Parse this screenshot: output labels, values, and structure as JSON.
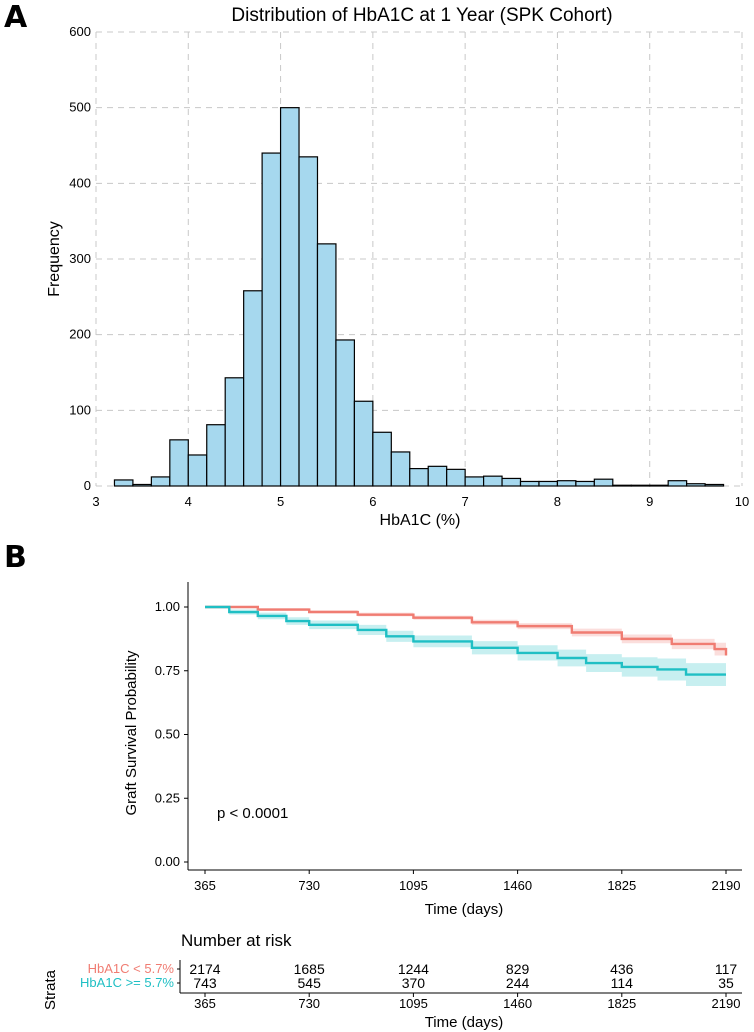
{
  "panels": {
    "a": "A",
    "b": "B"
  },
  "chart_data": [
    {
      "type": "bar",
      "title": "Distribution of HbA1C at 1 Year (SPK Cohort)",
      "xlabel": "HbA1C (%)",
      "ylabel": "Frequency",
      "xlim": [
        3,
        10
      ],
      "ylim": [
        0,
        600
      ],
      "xticks": [
        "3",
        "4",
        "5",
        "6",
        "7",
        "8",
        "9",
        "10"
      ],
      "yticks": [
        "0",
        "100",
        "200",
        "300",
        "400",
        "500",
        "600"
      ],
      "grid": true,
      "bar_color": "#a6d8ee",
      "bins": [
        {
          "x": 3.1,
          "count": 0
        },
        {
          "x": 3.3,
          "count": 8
        },
        {
          "x": 3.5,
          "count": 2
        },
        {
          "x": 3.7,
          "count": 12
        },
        {
          "x": 3.9,
          "count": 61
        },
        {
          "x": 4.1,
          "count": 41
        },
        {
          "x": 4.3,
          "count": 81
        },
        {
          "x": 4.5,
          "count": 143
        },
        {
          "x": 4.7,
          "count": 258
        },
        {
          "x": 4.9,
          "count": 440
        },
        {
          "x": 5.1,
          "count": 500
        },
        {
          "x": 5.3,
          "count": 435
        },
        {
          "x": 5.5,
          "count": 320
        },
        {
          "x": 5.7,
          "count": 193
        },
        {
          "x": 5.9,
          "count": 112
        },
        {
          "x": 6.1,
          "count": 71
        },
        {
          "x": 6.3,
          "count": 45
        },
        {
          "x": 6.5,
          "count": 23
        },
        {
          "x": 6.7,
          "count": 26
        },
        {
          "x": 6.9,
          "count": 22
        },
        {
          "x": 7.1,
          "count": 12
        },
        {
          "x": 7.3,
          "count": 13
        },
        {
          "x": 7.5,
          "count": 10
        },
        {
          "x": 7.7,
          "count": 6
        },
        {
          "x": 7.9,
          "count": 6
        },
        {
          "x": 8.1,
          "count": 7
        },
        {
          "x": 8.3,
          "count": 6
        },
        {
          "x": 8.5,
          "count": 9
        },
        {
          "x": 8.7,
          "count": 1
        },
        {
          "x": 8.9,
          "count": 1
        },
        {
          "x": 9.1,
          "count": 1
        },
        {
          "x": 9.3,
          "count": 7
        },
        {
          "x": 9.5,
          "count": 3
        },
        {
          "x": 9.7,
          "count": 2
        }
      ]
    },
    {
      "type": "line",
      "ylabel": "Graft Survival Probability",
      "xlabel": "Time (days)",
      "xlim": [
        365,
        2190
      ],
      "ylim": [
        0,
        1
      ],
      "xticks": [
        "365",
        "730",
        "1095",
        "1460",
        "1825",
        "2190"
      ],
      "yticks": [
        "0.00",
        "0.25",
        "0.50",
        "0.75",
        "1.00"
      ],
      "annotation": "p < 0.0001",
      "series": [
        {
          "name": "HbA1C < 5.7%",
          "color": "#f07c72",
          "x": [
            365,
            550,
            730,
            900,
            1095,
            1300,
            1460,
            1650,
            1825,
            2000,
            2150,
            2190
          ],
          "y": [
            1.0,
            0.99,
            0.98,
            0.97,
            0.958,
            0.94,
            0.925,
            0.9,
            0.875,
            0.855,
            0.835,
            0.81
          ],
          "ci_low": [
            1.0,
            0.985,
            0.975,
            0.963,
            0.95,
            0.93,
            0.913,
            0.885,
            0.858,
            0.835,
            0.81,
            0.785
          ],
          "ci_high": [
            1.0,
            0.995,
            0.988,
            0.978,
            0.966,
            0.95,
            0.937,
            0.915,
            0.892,
            0.875,
            0.86,
            0.84
          ]
        },
        {
          "name": "HbA1C >= 5.7%",
          "color": "#1fbfc4",
          "x": [
            365,
            450,
            550,
            650,
            730,
            900,
            1000,
            1095,
            1300,
            1460,
            1600,
            1700,
            1825,
            1950,
            2050,
            2190
          ],
          "y": [
            1.0,
            0.98,
            0.965,
            0.945,
            0.93,
            0.91,
            0.885,
            0.865,
            0.84,
            0.82,
            0.8,
            0.78,
            0.765,
            0.755,
            0.735,
            0.735
          ],
          "ci_low": [
            1.0,
            0.97,
            0.952,
            0.93,
            0.913,
            0.89,
            0.863,
            0.842,
            0.814,
            0.79,
            0.767,
            0.745,
            0.727,
            0.712,
            0.69,
            0.69
          ],
          "ci_high": [
            1.0,
            0.99,
            0.978,
            0.96,
            0.947,
            0.93,
            0.907,
            0.888,
            0.866,
            0.85,
            0.833,
            0.815,
            0.803,
            0.798,
            0.78,
            0.78
          ]
        }
      ]
    },
    {
      "type": "table",
      "title": "Number at risk",
      "ylabel": "Strata",
      "xlabel": "Time (days)",
      "columns": [
        "365",
        "730",
        "1095",
        "1460",
        "1825",
        "2190"
      ],
      "rows": [
        {
          "label": "HbA1C < 5.7%",
          "color": "#f07c72",
          "values": [
            "2174",
            "1685",
            "1244",
            "829",
            "436",
            "117"
          ]
        },
        {
          "label": "HbA1C >= 5.7%",
          "color": "#1fbfc4",
          "values": [
            "743",
            "545",
            "370",
            "244",
            "114",
            "35"
          ]
        }
      ]
    }
  ]
}
